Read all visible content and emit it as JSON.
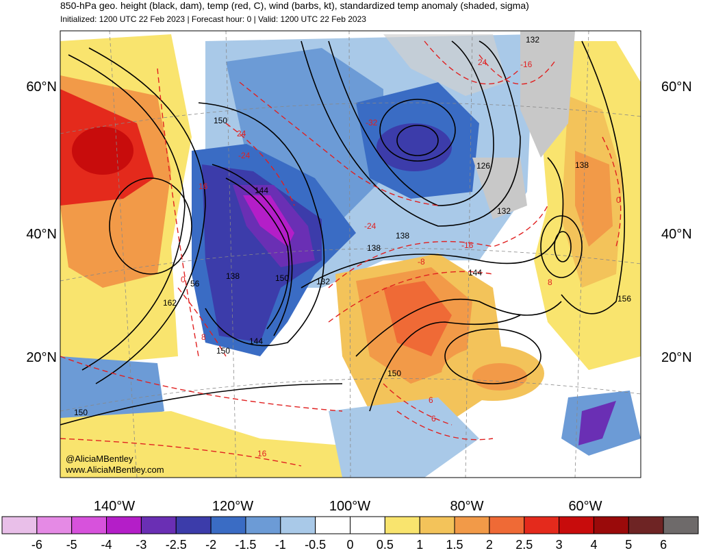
{
  "header": {
    "title": "850-hPa geo. height (black, dam), temp (red, C), wind (barbs, kt), standardized temp anomaly (shaded, sigma)",
    "subtitle": "Initialized: 1200 UTC 22 Feb 2023 | Forecast hour: 0 | Valid: 1200 UTC 22 Feb 2023"
  },
  "map": {
    "lat_labels": [
      "60°N",
      "40°N",
      "20°N"
    ],
    "lon_labels": [
      "140°W",
      "120°W",
      "100°W",
      "80°W",
      "60°W"
    ],
    "height_labels": [
      "150",
      "144",
      "138",
      "132",
      "126",
      "162",
      "156",
      "150",
      "144",
      "138",
      "132",
      "138",
      "144",
      "150",
      "150",
      "56",
      "132",
      "138",
      "150"
    ],
    "temp_labels": [
      "24",
      "-32",
      "-24",
      "-16",
      "-8",
      "0",
      "8",
      "8",
      "16",
      "24",
      "0",
      "16",
      "6",
      "6",
      "-24",
      "-16"
    ],
    "credit": [
      "@AliciaMBentley",
      "www.AliciaMBentley.com"
    ]
  },
  "colorbar": {
    "colors": [
      "#e9bfe9",
      "#e58ae5",
      "#d752dc",
      "#b41ec8",
      "#6a2fb4",
      "#3c3caa",
      "#3a6cc4",
      "#6c9bd6",
      "#a9c9e8",
      "#ffffff",
      "#ffffff",
      "#f9e46e",
      "#f3c35a",
      "#f29a48",
      "#ef6a36",
      "#e42a1c",
      "#c80c0c",
      "#9a0a0a",
      "#6e2424",
      "#6e6a6a"
    ],
    "labels": [
      -6,
      -5,
      -4,
      -3,
      -2.5,
      -2,
      -1.5,
      -1,
      -0.5,
      0,
      0.5,
      1,
      1.5,
      2,
      2.5,
      3,
      4,
      5,
      6
    ]
  }
}
